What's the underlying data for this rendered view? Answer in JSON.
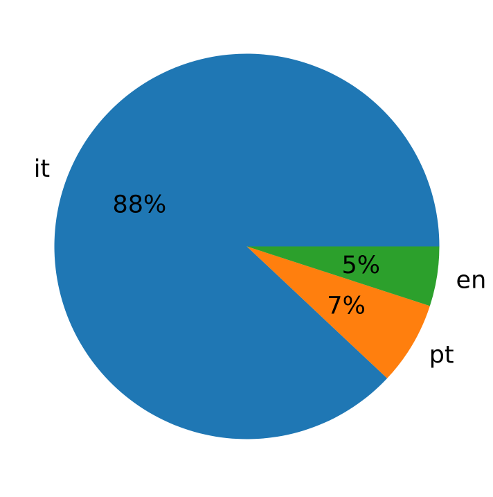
{
  "chart_data": {
    "type": "pie",
    "labels": [
      "it",
      "pt",
      "en"
    ],
    "values": [
      88,
      7,
      5
    ],
    "pct_labels": [
      "88%",
      "7%",
      "5%"
    ],
    "colors": [
      "#1f77b4",
      "#ff7f0e",
      "#2ca02c"
    ],
    "start_angle": 0,
    "direction": "counterclockwise",
    "label_distance": 1.1,
    "pct_distance": 0.6,
    "legend": "none",
    "background_color": "#ffffff",
    "text_color": "#000000"
  }
}
